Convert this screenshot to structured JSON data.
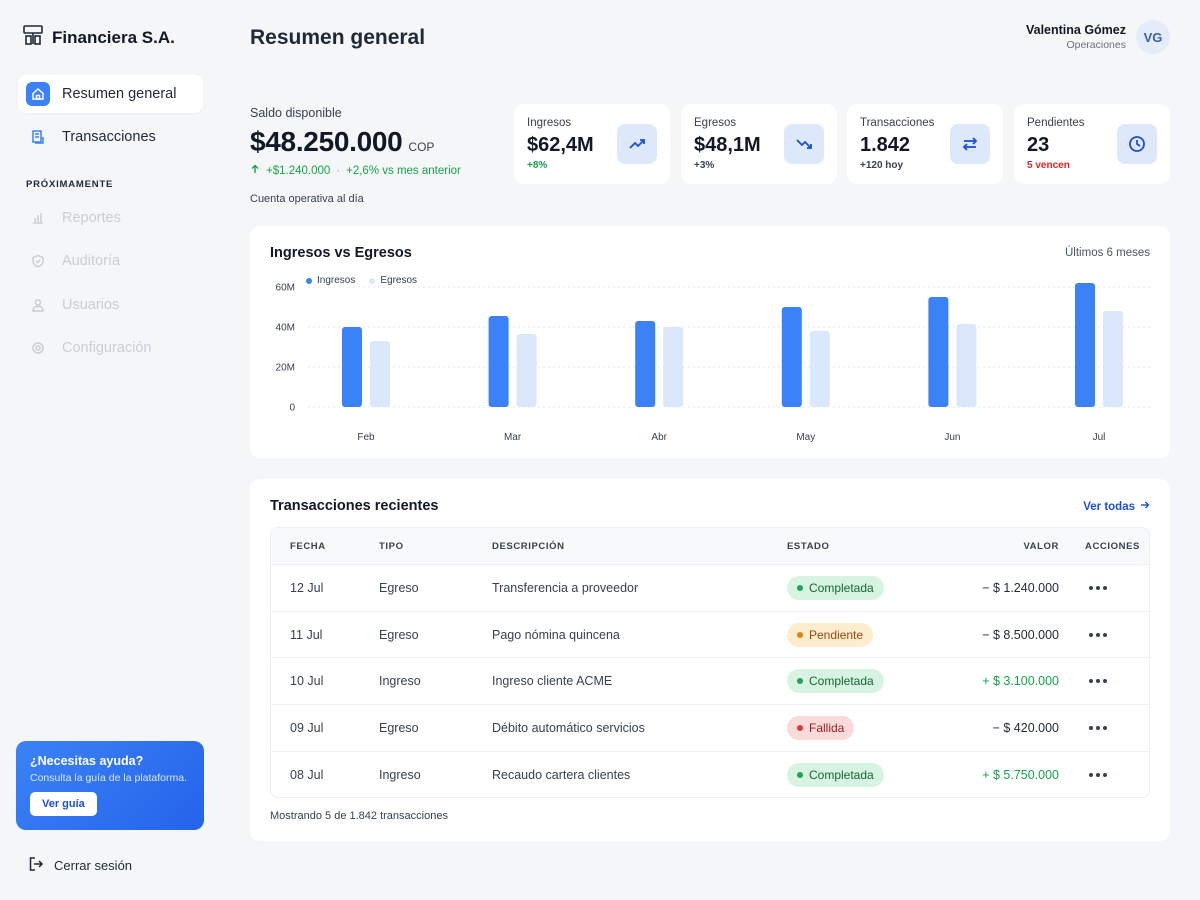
{
  "brand": {
    "name": "Financiera S.A."
  },
  "nav": {
    "items": [
      {
        "label": "Resumen general",
        "icon": "home-icon"
      },
      {
        "label": "Transacciones",
        "icon": "receipt-icon"
      }
    ],
    "section_label": "PRÓXIMAMENTE",
    "upcoming": [
      {
        "label": "Reportes",
        "icon": "bar-chart-icon"
      },
      {
        "label": "Auditoría",
        "icon": "shield-icon"
      },
      {
        "label": "Usuarios",
        "icon": "user-icon"
      },
      {
        "label": "Configuración",
        "icon": "gear-icon"
      }
    ]
  },
  "help": {
    "title": "¿Necesitas ayuda?",
    "subtitle": "Consulta la guía de la plataforma.",
    "button": "Ver guía"
  },
  "logout": "Cerrar sesión",
  "header": {
    "title": "Resumen general"
  },
  "user": {
    "name": "Valentina Gómez",
    "role": "Operaciones",
    "initials": "VG"
  },
  "balance": {
    "label": "Saldo disponible",
    "amount": "$48.250.000",
    "currency": "COP",
    "change": "+$1.240.000",
    "separator": "·",
    "change_pct": "+2,6% vs mes anterior",
    "note": "Cuenta operativa al día"
  },
  "kpis": [
    {
      "label": "Ingresos",
      "value": "$62,4M",
      "sub": "+8%",
      "icon": "trending-up-icon"
    },
    {
      "label": "Egresos",
      "value": "$48,1M",
      "sub": "+3%",
      "icon": "trending-down-icon"
    },
    {
      "label": "Transacciones",
      "value": "1.842",
      "sub": "+120 hoy",
      "icon": "swap-arrows-icon"
    },
    {
      "label": "Pendientes",
      "value": "23",
      "sub": "5 vencen",
      "icon": "clock-icon"
    }
  ],
  "colors": {
    "accent": "#3b82f6",
    "series_ingresos": "#3b82f6",
    "series_egresos": "#dbe7fb",
    "positive": "#16a34a",
    "negative": "#dc2626"
  },
  "chart": {
    "title": "Ingresos vs Egresos",
    "period": "Últimos 6 meses"
  },
  "chart_data": {
    "type": "bar",
    "title": "Ingresos vs Egresos",
    "categories": [
      "Feb",
      "Mar",
      "Abr",
      "May",
      "Jun",
      "Jul"
    ],
    "series": [
      {
        "name": "Ingresos",
        "values": [
          40,
          45.5,
          43,
          50,
          55,
          62
        ]
      },
      {
        "name": "Egresos",
        "values": [
          33,
          36.5,
          40,
          38,
          41.5,
          48
        ]
      }
    ],
    "y_ticks": [
      "0",
      "20M",
      "40M",
      "60M"
    ],
    "ylim": [
      0,
      60
    ],
    "grid": true,
    "legend": "top-left"
  },
  "transactions": {
    "title": "Transacciones recientes",
    "view_all": "Ver todas",
    "columns": [
      "FECHA",
      "TIPO",
      "DESCRIPCIÓN",
      "ESTADO",
      "VALOR",
      "ACCIONES"
    ],
    "rows": [
      {
        "fecha": "12 Jul",
        "tipo": "Egreso",
        "descripcion": "Transferencia a proveedor",
        "estado": "Completada",
        "valor": "− $ 1.240.000"
      },
      {
        "fecha": "11 Jul",
        "tipo": "Egreso",
        "descripcion": "Pago nómina quincena",
        "estado": "Pendiente",
        "valor": "− $ 8.500.000"
      },
      {
        "fecha": "10 Jul",
        "tipo": "Ingreso",
        "descripcion": "Ingreso cliente ACME",
        "estado": "Completada",
        "valor": "+ $ 3.100.000"
      },
      {
        "fecha": "09 Jul",
        "tipo": "Egreso",
        "descripcion": "Débito automático servicios",
        "estado": "Fallida",
        "valor": "− $ 420.000"
      },
      {
        "fecha": "08 Jul",
        "tipo": "Ingreso",
        "descripcion": "Recaudo cartera clientes",
        "estado": "Completada",
        "valor": "+ $ 5.750.000"
      }
    ],
    "footer": "Mostrando 5 de 1.842 transacciones"
  }
}
